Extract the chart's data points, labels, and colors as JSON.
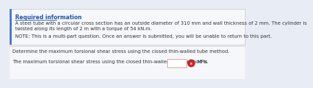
{
  "title": "Required information",
  "title_color": "#2255aa",
  "body_text_1": "A steel tube with a circular cross section has an outside diameter of 310 mm and wall thickness of 2 mm. The cylinder is",
  "body_text_2": "twisted along its length of 2 m with a torque of 54 kN.m.",
  "note_text": "NOTE: This is a multi-part question. Once an answer is submitted, you will be unable to return to this part.",
  "question_text": "Determine the maximum torsional shear stress using the closed thin-walled tube method.",
  "answer_text_1": "The maximum torsional shear stress using the closed thin-walled tube method is",
  "answer_text_2": "MPa.",
  "box_fill": "#f5f7fb",
  "box_border": "#cccccc",
  "blue_border_color": "#4477cc",
  "input_box_color": "#ffffff",
  "input_box_border": "#ddaaaa",
  "red_circle_color": "#cc2222",
  "background_color": "#e8edf5",
  "lower_bg_color": "#f5f7fb",
  "font_size_title": 5.8,
  "font_size_body": 5.0,
  "font_size_note": 5.0,
  "font_size_question": 5.0
}
